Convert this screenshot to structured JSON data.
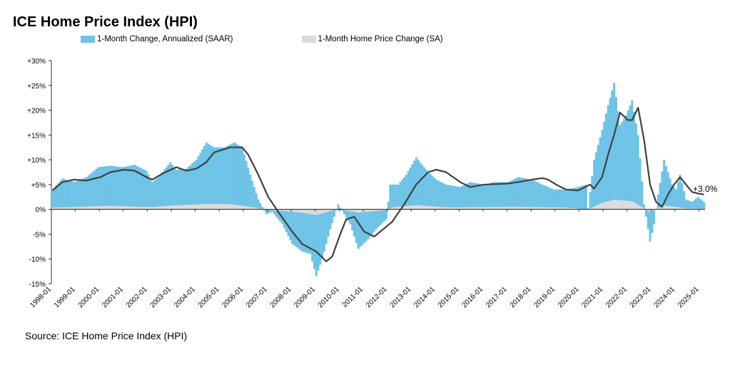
{
  "title": "ICE Home Price Index (HPI)",
  "source": "Source: ICE Home Price Index (HPI)",
  "colors": {
    "saar": "#6ec3e6",
    "sa": "#dcdcdc",
    "trend": "#404040"
  },
  "chart_data": {
    "type": "bar",
    "title": "ICE Home Price Index (HPI)",
    "ylim": [
      -15,
      30
    ],
    "y_ticks": [
      "-15%",
      "-10%",
      "-5%",
      "0%",
      "+5%",
      "+10%",
      "+15%",
      "+20%",
      "+25%",
      "+30%"
    ],
    "x_ticks": [
      "1998-01",
      "1999-01",
      "2000-01",
      "2001-01",
      "2002-01",
      "2003-01",
      "2004-01",
      "2005-01",
      "2006-01",
      "2007-01",
      "2008-01",
      "2009-01",
      "2010-01",
      "2011-01",
      "2012-01",
      "2013-01",
      "2014-01",
      "2015-01",
      "2016-01",
      "2017-01",
      "2018-01",
      "2019-01",
      "2020-01",
      "2021-01",
      "2022-01",
      "2023-01",
      "2024-01",
      "2025-01"
    ],
    "legend": [
      "1-Month Change, Annualized (SAAR)",
      "1-Month Home Price Change (SA)"
    ],
    "legend_position": "top",
    "grid": false,
    "annotation": "+3.0%",
    "frequency": "monthly",
    "start": "1998-01",
    "series": [
      {
        "name": "1-Month Change, Annualized (SAAR)",
        "kind": "bar",
        "anchors": [
          [
            "1998-01",
            4.0
          ],
          [
            "1998-06",
            6.2
          ],
          [
            "1998-12",
            5.5
          ],
          [
            "1999-06",
            6.5
          ],
          [
            "1999-12",
            8.5
          ],
          [
            "2000-06",
            8.8
          ],
          [
            "2000-12",
            8.5
          ],
          [
            "2001-06",
            9.0
          ],
          [
            "2001-12",
            7.8
          ],
          [
            "2002-03",
            5.5
          ],
          [
            "2002-06",
            6.5
          ],
          [
            "2002-12",
            9.5
          ],
          [
            "2003-03",
            8.0
          ],
          [
            "2003-08",
            8.2
          ],
          [
            "2004-01",
            10.0
          ],
          [
            "2004-06",
            13.5
          ],
          [
            "2004-10",
            12.5
          ],
          [
            "2005-03",
            12.5
          ],
          [
            "2005-08",
            13.5
          ],
          [
            "2005-12",
            12.5
          ],
          [
            "2006-04",
            7.0
          ],
          [
            "2006-08",
            2.0
          ],
          [
            "2006-12",
            -1.0
          ],
          [
            "2007-03",
            -0.5
          ],
          [
            "2007-08",
            -3.0
          ],
          [
            "2008-01",
            -7.0
          ],
          [
            "2008-06",
            -8.5
          ],
          [
            "2008-10",
            -9.0
          ],
          [
            "2009-01",
            -13.5
          ],
          [
            "2009-04",
            -10.0
          ],
          [
            "2009-08",
            -4.0
          ],
          [
            "2009-12",
            1.0
          ],
          [
            "2010-03",
            -1.0
          ],
          [
            "2010-06",
            -3.0
          ],
          [
            "2010-10",
            -8.0
          ],
          [
            "2011-03",
            -6.0
          ],
          [
            "2011-07",
            -4.0
          ],
          [
            "2011-12",
            -2.0
          ],
          [
            "2012-02",
            5.0
          ],
          [
            "2012-06",
            5.0
          ],
          [
            "2012-10",
            7.0
          ],
          [
            "2013-03",
            10.5
          ],
          [
            "2013-08",
            8.0
          ],
          [
            "2014-01",
            6.0
          ],
          [
            "2014-06",
            5.0
          ],
          [
            "2015-01",
            4.5
          ],
          [
            "2015-06",
            5.5
          ],
          [
            "2016-01",
            5.0
          ],
          [
            "2016-06",
            5.5
          ],
          [
            "2017-01",
            5.5
          ],
          [
            "2017-06",
            6.5
          ],
          [
            "2018-01",
            6.0
          ],
          [
            "2018-06",
            5.0
          ],
          [
            "2018-12",
            4.0
          ],
          [
            "2019-06",
            4.0
          ],
          [
            "2019-12",
            4.5
          ],
          [
            "2020-04",
            5.0
          ],
          [
            "2020-05",
            0.2
          ],
          [
            "2020-08",
            10.0
          ],
          [
            "2020-12",
            16.0
          ],
          [
            "2021-03",
            21.0
          ],
          [
            "2021-06",
            25.5
          ],
          [
            "2021-09",
            17.0
          ],
          [
            "2021-12",
            19.0
          ],
          [
            "2022-03",
            22.0
          ],
          [
            "2022-06",
            15.0
          ],
          [
            "2022-09",
            1.0
          ],
          [
            "2022-12",
            -6.5
          ],
          [
            "2023-02",
            -3.0
          ],
          [
            "2023-04",
            3.0
          ],
          [
            "2023-07",
            10.0
          ],
          [
            "2023-11",
            5.0
          ],
          [
            "2024-01",
            4.0
          ],
          [
            "2024-03",
            7.0
          ],
          [
            "2024-06",
            2.0
          ],
          [
            "2024-09",
            1.5
          ],
          [
            "2024-12",
            2.5
          ],
          [
            "2025-03",
            1.5
          ]
        ]
      },
      {
        "name": "1-Month Home Price Change (SA)",
        "kind": "bar",
        "anchors": [
          [
            "1998-01",
            0.33
          ],
          [
            "1999-06",
            0.55
          ],
          [
            "2000-06",
            0.7
          ],
          [
            "2002-03",
            0.45
          ],
          [
            "2002-12",
            0.75
          ],
          [
            "2004-06",
            1.1
          ],
          [
            "2005-06",
            1.05
          ],
          [
            "2006-06",
            0.4
          ],
          [
            "2006-12",
            -0.1
          ],
          [
            "2007-08",
            -0.3
          ],
          [
            "2008-06",
            -0.7
          ],
          [
            "2009-01",
            -1.15
          ],
          [
            "2009-08",
            -0.35
          ],
          [
            "2009-12",
            0.1
          ],
          [
            "2010-10",
            -0.65
          ],
          [
            "2011-12",
            -0.15
          ],
          [
            "2012-03",
            0.4
          ],
          [
            "2013-03",
            0.85
          ],
          [
            "2014-06",
            0.4
          ],
          [
            "2017-06",
            0.5
          ],
          [
            "2019-06",
            0.35
          ],
          [
            "2020-05",
            0.02
          ],
          [
            "2020-12",
            1.3
          ],
          [
            "2021-06",
            1.95
          ],
          [
            "2022-03",
            1.65
          ],
          [
            "2022-12",
            -0.55
          ],
          [
            "2023-07",
            0.8
          ],
          [
            "2024-06",
            0.2
          ],
          [
            "2025-03",
            0.12
          ]
        ]
      },
      {
        "name": "trend",
        "kind": "line",
        "anchors": [
          [
            "1998-01",
            3.8
          ],
          [
            "1998-06",
            5.5
          ],
          [
            "1998-12",
            6.0
          ],
          [
            "1999-06",
            5.8
          ],
          [
            "2000-01",
            6.5
          ],
          [
            "2000-06",
            7.5
          ],
          [
            "2001-01",
            8.0
          ],
          [
            "2001-06",
            7.8
          ],
          [
            "2002-01",
            6.3
          ],
          [
            "2002-03",
            6.0
          ],
          [
            "2002-08",
            7.2
          ],
          [
            "2003-03",
            8.5
          ],
          [
            "2003-08",
            7.8
          ],
          [
            "2004-01",
            8.2
          ],
          [
            "2004-06",
            9.5
          ],
          [
            "2004-10",
            11.5
          ],
          [
            "2005-06",
            12.5
          ],
          [
            "2005-12",
            12.5
          ],
          [
            "2006-03",
            11.0
          ],
          [
            "2006-08",
            7.0
          ],
          [
            "2007-01",
            2.5
          ],
          [
            "2007-06",
            -0.5
          ],
          [
            "2008-01",
            -4.5
          ],
          [
            "2008-06",
            -7.0
          ],
          [
            "2009-01",
            -8.5
          ],
          [
            "2009-06",
            -10.5
          ],
          [
            "2009-09",
            -9.5
          ],
          [
            "2010-01",
            -5.0
          ],
          [
            "2010-04",
            -2.0
          ],
          [
            "2010-08",
            -1.5
          ],
          [
            "2011-01",
            -4.5
          ],
          [
            "2011-06",
            -5.5
          ],
          [
            "2011-12",
            -3.5
          ],
          [
            "2012-03",
            -2.5
          ],
          [
            "2012-09",
            1.0
          ],
          [
            "2013-03",
            5.0
          ],
          [
            "2013-09",
            7.5
          ],
          [
            "2014-01",
            8.0
          ],
          [
            "2014-06",
            7.5
          ],
          [
            "2015-01",
            5.5
          ],
          [
            "2015-06",
            4.5
          ],
          [
            "2016-01",
            5.0
          ],
          [
            "2017-01",
            5.2
          ],
          [
            "2017-06",
            5.5
          ],
          [
            "2018-01",
            6.0
          ],
          [
            "2018-06",
            6.3
          ],
          [
            "2018-09",
            6.0
          ],
          [
            "2019-01",
            5.0
          ],
          [
            "2019-06",
            4.0
          ],
          [
            "2019-12",
            3.8
          ],
          [
            "2020-06",
            5.0
          ],
          [
            "2020-08",
            4.2
          ],
          [
            "2020-12",
            6.5
          ],
          [
            "2021-03",
            11.0
          ],
          [
            "2021-06",
            15.0
          ],
          [
            "2021-09",
            19.5
          ],
          [
            "2022-01",
            18.0
          ],
          [
            "2022-03",
            18.0
          ],
          [
            "2022-06",
            20.5
          ],
          [
            "2022-09",
            14.0
          ],
          [
            "2022-12",
            5.0
          ],
          [
            "2023-03",
            1.5
          ],
          [
            "2023-06",
            0.5
          ],
          [
            "2023-09",
            3.0
          ],
          [
            "2023-12",
            5.0
          ],
          [
            "2024-03",
            6.5
          ],
          [
            "2024-06",
            5.0
          ],
          [
            "2024-09",
            3.5
          ],
          [
            "2024-12",
            3.2
          ],
          [
            "2025-03",
            3.0
          ]
        ]
      }
    ]
  }
}
